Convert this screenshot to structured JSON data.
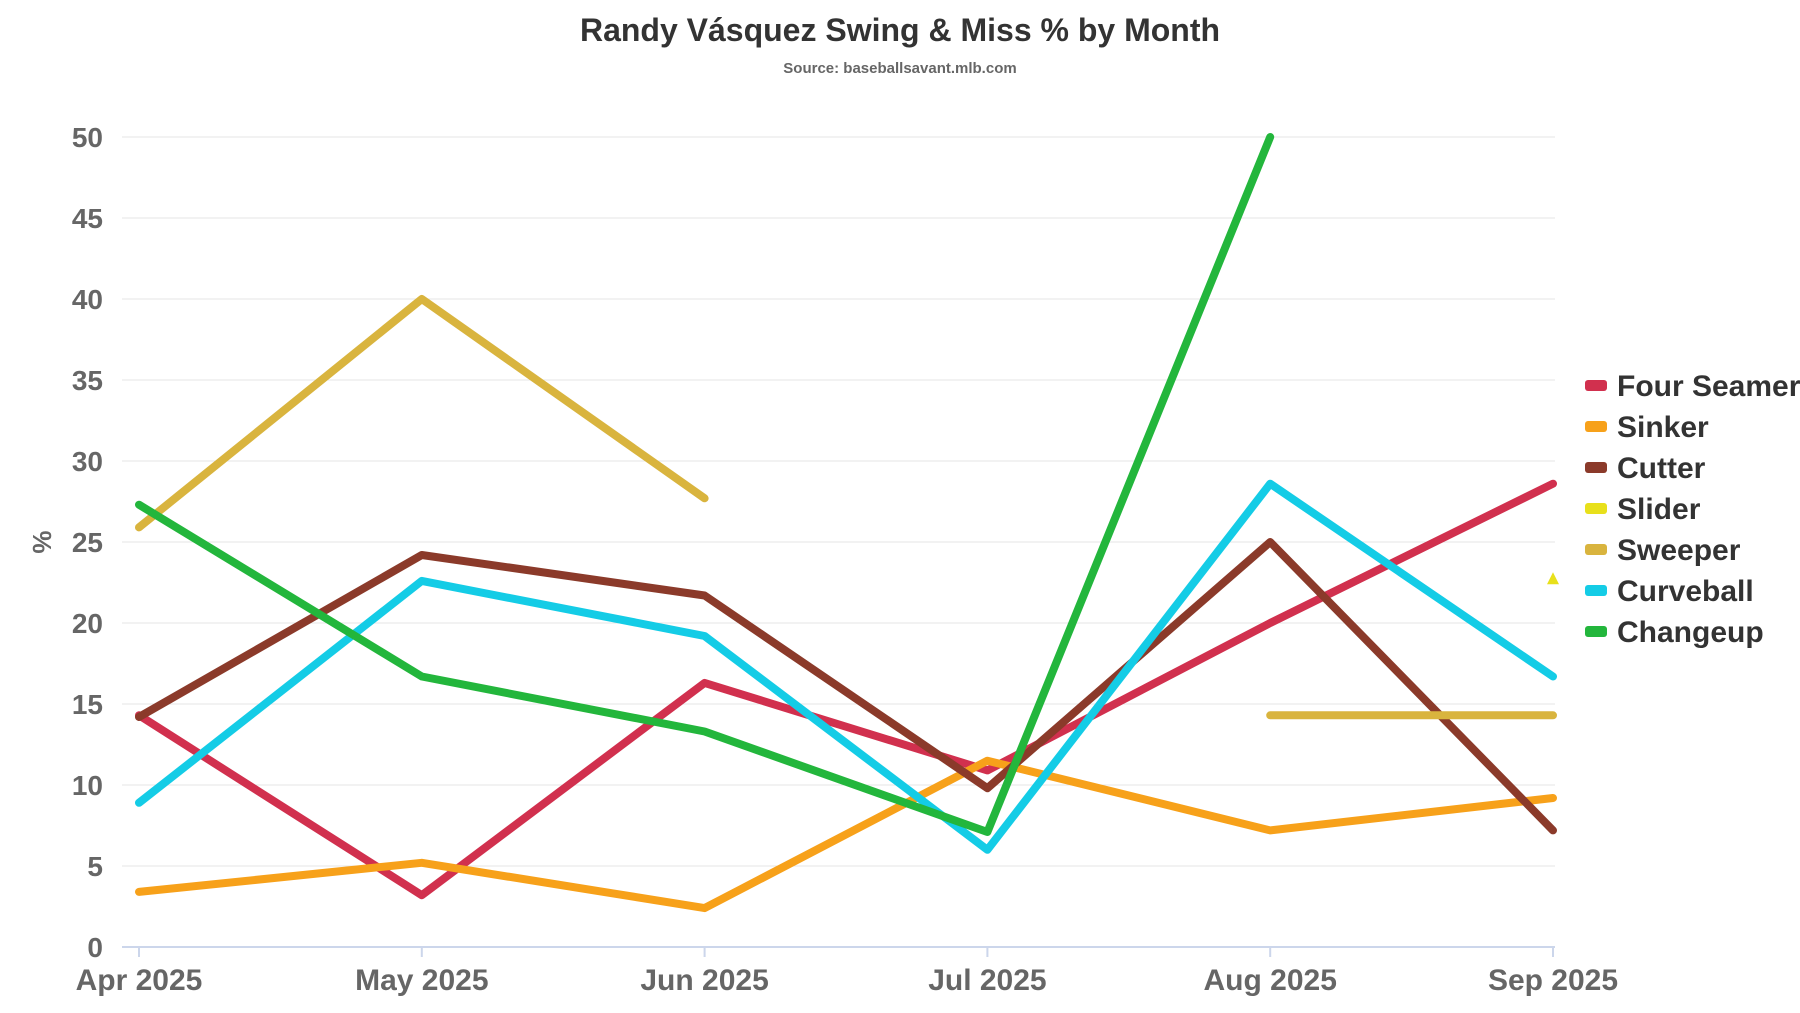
{
  "chart_data": {
    "type": "line",
    "title": "Randy Vásquez Swing & Miss % by Month",
    "subtitle": "Source: baseballsavant.mlb.com",
    "xlabel": "",
    "ylabel": "%",
    "categories": [
      "Apr 2025",
      "May 2025",
      "Jun 2025",
      "Jul 2025",
      "Aug 2025",
      "Sep 2025"
    ],
    "ylim": [
      0,
      50
    ],
    "yticks": [
      0,
      5,
      10,
      15,
      20,
      25,
      30,
      35,
      40,
      45,
      50
    ],
    "grid": true,
    "legend_position": "right",
    "series": [
      {
        "name": "Four Seamer",
        "color": "#d1304e",
        "values": [
          14.3,
          3.2,
          16.3,
          10.9,
          20.0,
          28.6
        ]
      },
      {
        "name": "Sinker",
        "color": "#f7a11a",
        "values": [
          3.4,
          5.2,
          2.4,
          11.5,
          7.2,
          9.2
        ]
      },
      {
        "name": "Cutter",
        "color": "#8b3a2a",
        "values": [
          14.2,
          24.2,
          21.7,
          9.8,
          25.0,
          7.2
        ]
      },
      {
        "name": "Slider",
        "color": "#e8e01b",
        "values": [
          null,
          null,
          null,
          null,
          null,
          22.7
        ]
      },
      {
        "name": "Sweeper",
        "color": "#d9b43e",
        "values": [
          25.9,
          40.0,
          27.7,
          null,
          14.3,
          14.3
        ]
      },
      {
        "name": "Curveball",
        "color": "#14cce6",
        "values": [
          8.9,
          22.6,
          19.2,
          6.0,
          28.6,
          16.7
        ]
      },
      {
        "name": "Changeup",
        "color": "#23b63c",
        "values": [
          27.3,
          16.7,
          13.3,
          7.1,
          50.0,
          null
        ]
      }
    ]
  }
}
